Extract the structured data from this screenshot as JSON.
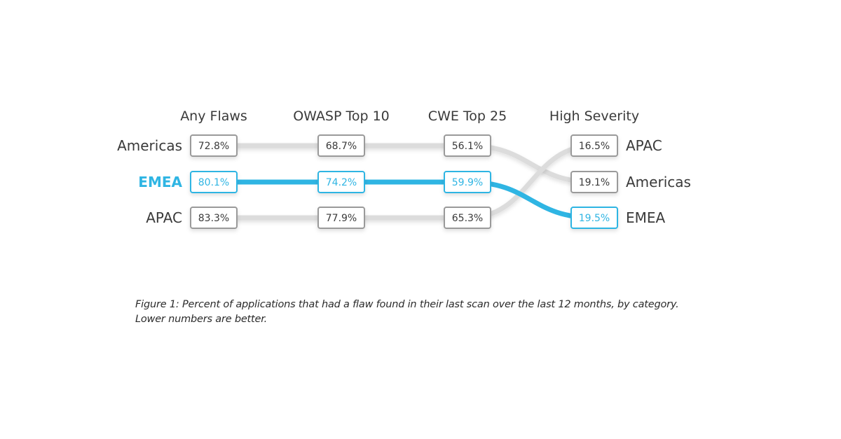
{
  "chart_data": {
    "type": "slope",
    "categories": [
      "Any Flaws",
      "OWASP Top 10",
      "CWE Top 25",
      "High Severity"
    ],
    "series": [
      {
        "name": "Americas",
        "values": [
          72.8,
          68.7,
          56.1,
          19.1
        ],
        "labels": [
          "72.8%",
          "68.7%",
          "56.1%",
          "19.1%"
        ],
        "highlight": false
      },
      {
        "name": "EMEA",
        "values": [
          80.1,
          74.2,
          59.9,
          19.5
        ],
        "labels": [
          "80.1%",
          "74.2%",
          "59.9%",
          "19.5%"
        ],
        "highlight": true
      },
      {
        "name": "APAC",
        "values": [
          83.3,
          77.9,
          65.3,
          16.5
        ],
        "labels": [
          "83.3%",
          "77.9%",
          "65.3%",
          "16.5%"
        ],
        "highlight": false
      }
    ],
    "ordering": "rank within each category, lowest at top",
    "colors": {
      "highlight": "#2fb5e3",
      "line": "#dcdcdc",
      "box_border": "#9a9a9a",
      "text": "#3a3a3a"
    }
  },
  "caption": {
    "line1": "Figure 1: Percent of applications that had a flaw found in their last scan over the last 12 months, by category.",
    "line2": "Lower numbers are better."
  }
}
